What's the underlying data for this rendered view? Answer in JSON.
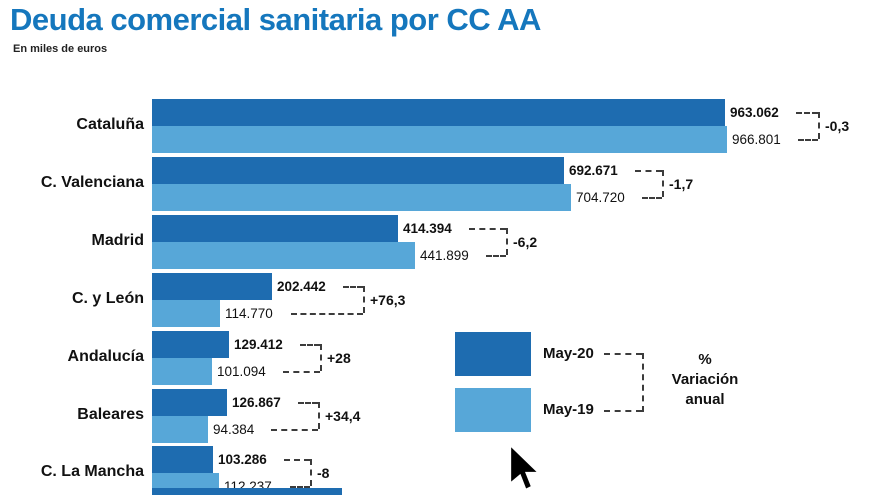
{
  "title": "Deuda comercial sanitaria por CC AA",
  "subtitle": "En miles de euros",
  "colors": {
    "title_blue": "#1577bd",
    "dark_bar": "#1e6cb0",
    "light_bar": "#57a7d8"
  },
  "legend": {
    "dark_label": "May-20",
    "light_label": "May-19",
    "note_pct": "%",
    "note_line1": "Variación",
    "note_line2": "anual"
  },
  "chart_data": {
    "type": "bar",
    "orientation": "horizontal",
    "unit": "miles de euros",
    "title": "Deuda comercial sanitaria por CC AA",
    "series_names": [
      "May-20",
      "May-19"
    ],
    "legend_position": "right-middle",
    "max_value": 966801,
    "partial_next_row_visible": true,
    "categories": [
      "Cataluña",
      "C. Valenciana",
      "Madrid",
      "C. y León",
      "Andalucía",
      "Baleares",
      "C. La Mancha"
    ],
    "rows": [
      {
        "name": "Cataluña",
        "values": [
          963062,
          966801
        ],
        "labels": [
          "963.062",
          "966.801"
        ],
        "variation": "-0,3"
      },
      {
        "name": "C. Valenciana",
        "values": [
          692671,
          704720
        ],
        "labels": [
          "692.671",
          "704.720"
        ],
        "variation": "-1,7"
      },
      {
        "name": "Madrid",
        "values": [
          414394,
          441899
        ],
        "labels": [
          "414.394",
          "441.899"
        ],
        "variation": "-6,2"
      },
      {
        "name": "C. y León",
        "values": [
          202442,
          114770
        ],
        "labels": [
          "202.442",
          "114.770"
        ],
        "variation": "+76,3"
      },
      {
        "name": "Andalucía",
        "values": [
          129412,
          101094
        ],
        "labels": [
          "129.412",
          "101.094"
        ],
        "variation": "+28"
      },
      {
        "name": "Baleares",
        "values": [
          126867,
          94384
        ],
        "labels": [
          "126.867",
          "94.384"
        ],
        "variation": "+34,4"
      },
      {
        "name": "C. La Mancha",
        "values": [
          103286,
          112237
        ],
        "labels": [
          "103.286",
          "112.237"
        ],
        "variation": "-8"
      }
    ]
  }
}
